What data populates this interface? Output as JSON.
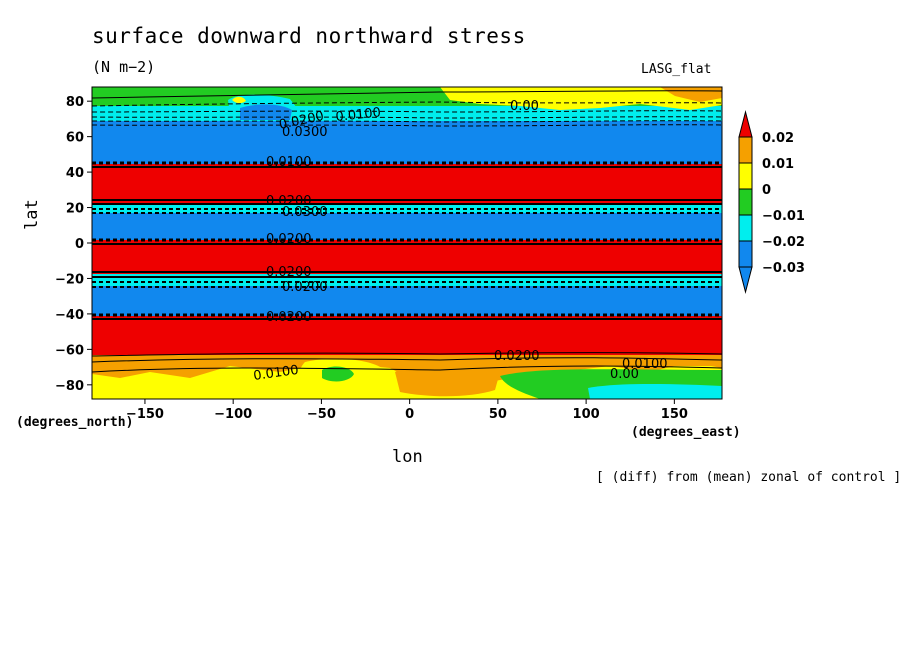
{
  "figure": {
    "title": "surface downward northward stress",
    "units": "(N m−2)",
    "model_label": "LASG_flat",
    "ylabel": "lat",
    "xlabel": "lon",
    "y_units": "(degrees_north)",
    "x_units": "(degrees_east)",
    "note": "[ (diff) from (mean) zonal of control ]"
  },
  "chart_data": {
    "type": "heatmap",
    "title": "surface downward northward stress",
    "xlabel": "lon",
    "ylabel": "lat",
    "xlim": [
      -180,
      177
    ],
    "ylim": [
      -88,
      88
    ],
    "xticks": [
      -150,
      -100,
      -50,
      0,
      50,
      100,
      150
    ],
    "yticks": [
      80,
      60,
      40,
      20,
      0,
      -20,
      -40,
      -60,
      -80
    ],
    "colorbar": {
      "levels": [
        0.02,
        0.01,
        0,
        -0.01,
        -0.02,
        -0.03
      ],
      "labels": [
        "0.02",
        "0.01",
        "0",
        "−0.01",
        "−0.02",
        "−0.03"
      ],
      "colors": [
        "#ee0000",
        "#f5a000",
        "#ffff00",
        "#22cc22",
        "#00eeee",
        "#1188ee"
      ]
    },
    "zonal_bands": [
      {
        "lat_from": 88,
        "lat_to": 76,
        "value_class": "-0.01 to 0"
      },
      {
        "lat_from": 76,
        "lat_to": 68,
        "value_class": "-0.02 to -0.01"
      },
      {
        "lat_from": 68,
        "lat_to": 44,
        "value_class": "below -0.03"
      },
      {
        "lat_from": 44,
        "lat_to": 22,
        "value_class": "above 0.02"
      },
      {
        "lat_from": 22,
        "lat_to": 16,
        "value_class": "-0.02 to -0.01"
      },
      {
        "lat_from": 16,
        "lat_to": 1,
        "value_class": "below -0.03"
      },
      {
        "lat_from": 1,
        "lat_to": -19,
        "value_class": "above 0.02"
      },
      {
        "lat_from": -19,
        "lat_to": -26,
        "value_class": "-0.02 to -0.01"
      },
      {
        "lat_from": -26,
        "lat_to": -42,
        "value_class": "below -0.03"
      },
      {
        "lat_from": -42,
        "lat_to": -66,
        "value_class": "above 0.02"
      },
      {
        "lat_from": -66,
        "lat_to": -72,
        "value_class": "0.01 to 0.02"
      },
      {
        "lat_from": -72,
        "lat_to": -88,
        "value_class": "0 to 0.01"
      }
    ],
    "contour_labels": [
      "0.0100",
      "0.0200",
      "0.00",
      "0.0300"
    ],
    "grid": false
  }
}
